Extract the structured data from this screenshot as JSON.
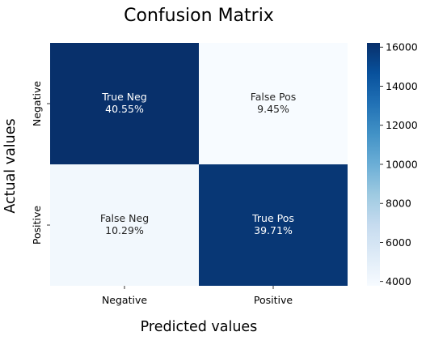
{
  "chart_data": {
    "type": "heatmap",
    "title": "Confusion Matrix",
    "xlabel": "Predicted values",
    "ylabel": "Actual values",
    "x_categories": [
      "Negative",
      "Positive"
    ],
    "y_categories": [
      "Negative",
      "Positive"
    ],
    "cells": [
      {
        "row": 0,
        "col": 0,
        "name": "True Neg",
        "percent": "40.55%",
        "value": 16217
      },
      {
        "row": 0,
        "col": 1,
        "name": "False Pos",
        "percent": "9.45%",
        "value": 3780
      },
      {
        "row": 1,
        "col": 0,
        "name": "False Neg",
        "percent": "10.29%",
        "value": 4114
      },
      {
        "row": 1,
        "col": 1,
        "name": "True Pos",
        "percent": "39.71%",
        "value": 15885
      }
    ],
    "colormap": "Blues",
    "colorbar": {
      "min": 3780,
      "max": 16217,
      "ticks": [
        4000,
        6000,
        8000,
        10000,
        12000,
        14000,
        16000
      ]
    },
    "colors": {
      "dark": "#08306b",
      "light": "#f7fbff"
    }
  }
}
